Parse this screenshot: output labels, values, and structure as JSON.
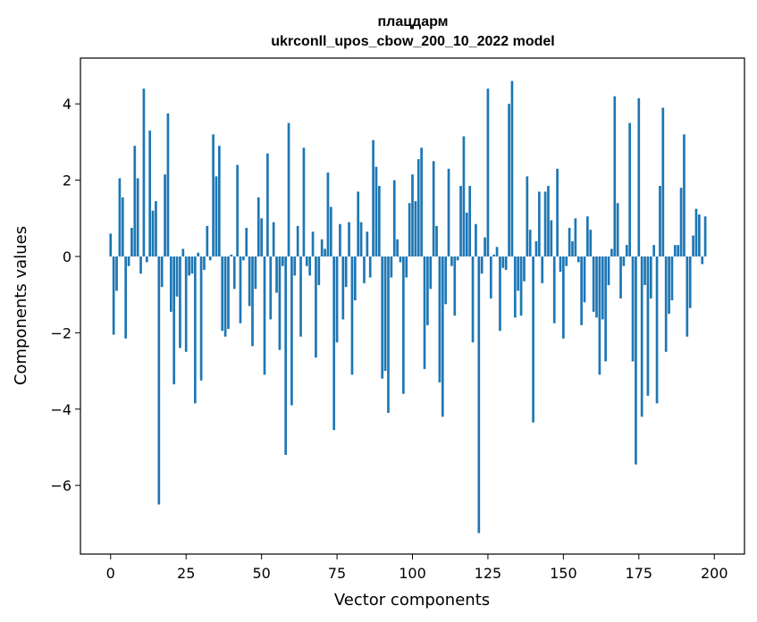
{
  "chart_data": {
    "type": "bar",
    "title": "плацдарм",
    "subtitle": "ukrconll_upos_cbow_200_10_2022 model",
    "xlabel": "Vector components",
    "ylabel": "Components values",
    "xlim": [
      -10,
      210
    ],
    "ylim": [
      -7.8,
      5.2
    ],
    "xticks": [
      0,
      25,
      50,
      75,
      100,
      125,
      150,
      175,
      200
    ],
    "xtick_labels": [
      "0",
      "25",
      "50",
      "75",
      "100",
      "125",
      "150",
      "175",
      "200"
    ],
    "yticks": [
      -6,
      -4,
      -2,
      0,
      2,
      4
    ],
    "ytick_labels": [
      "−6",
      "−4",
      "−2",
      "0",
      "2",
      "4"
    ],
    "color": "#1f77b4",
    "values": [
      0.6,
      -2.05,
      -0.9,
      2.05,
      1.55,
      -2.15,
      -0.25,
      0.75,
      2.9,
      2.05,
      -0.45,
      4.4,
      -0.15,
      3.3,
      1.2,
      1.45,
      -6.5,
      -0.8,
      2.15,
      3.75,
      -1.45,
      -3.35,
      -1.05,
      -2.4,
      0.2,
      -2.5,
      -0.5,
      -0.45,
      -3.85,
      0.1,
      -3.25,
      -0.35,
      0.8,
      -0.1,
      3.2,
      2.1,
      2.9,
      -1.95,
      -2.1,
      -1.9,
      0.05,
      -0.85,
      2.4,
      -1.75,
      -0.1,
      0.75,
      -1.3,
      -2.35,
      -0.85,
      1.55,
      1.0,
      -3.1,
      2.7,
      -1.65,
      0.9,
      -0.95,
      -2.45,
      -0.25,
      -5.2,
      3.5,
      -3.9,
      -0.5,
      0.8,
      -2.1,
      2.85,
      -0.25,
      -0.5,
      0.65,
      -2.65,
      -0.75,
      0.45,
      0.2,
      2.2,
      1.3,
      -4.55,
      -2.25,
      0.85,
      -1.65,
      -0.8,
      0.9,
      -3.1,
      -1.15,
      1.7,
      0.9,
      -0.7,
      0.65,
      -0.55,
      3.05,
      2.35,
      1.85,
      -3.2,
      -3.0,
      -4.1,
      -0.55,
      2.0,
      0.45,
      -0.15,
      -3.6,
      -0.55,
      1.4,
      2.15,
      1.45,
      2.55,
      2.85,
      -2.95,
      -1.8,
      -0.85,
      2.5,
      0.8,
      -3.3,
      -4.2,
      -1.25,
      2.3,
      -0.25,
      -1.55,
      -0.1,
      1.85,
      3.15,
      1.15,
      1.85,
      -2.25,
      0.85,
      -7.25,
      -0.45,
      0.5,
      4.4,
      -1.1,
      0.05,
      0.25,
      -1.95,
      -0.3,
      -0.35,
      4.0,
      4.6,
      -1.6,
      -0.9,
      -1.55,
      -0.65,
      2.1,
      0.7,
      -4.35,
      0.4,
      1.7,
      -0.7,
      1.7,
      1.85,
      0.95,
      -1.75,
      2.3,
      -0.4,
      -2.15,
      -0.25,
      0.75,
      0.4,
      1.0,
      -0.15,
      -1.8,
      -1.2,
      1.05,
      0.7,
      -1.45,
      -1.6,
      -3.1,
      -1.65,
      -2.75,
      -0.75,
      0.2,
      4.2,
      1.4,
      -1.1,
      -0.25,
      0.3,
      3.5,
      -2.75,
      -5.45,
      4.15,
      -4.2,
      -0.75,
      -3.65,
      -1.1,
      0.3,
      -3.85,
      1.85,
      3.9,
      -2.5,
      -1.5,
      -1.15,
      0.3,
      0.3,
      1.8,
      3.2,
      -2.1,
      -1.35,
      0.55,
      1.25,
      1.1,
      -0.2,
      1.05
    ]
  }
}
